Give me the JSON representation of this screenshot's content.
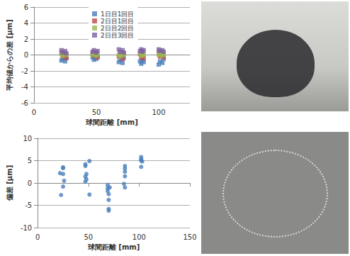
{
  "chart_data": [
    {
      "type": "scatter",
      "x_label": "球間距離 [mm]",
      "y_label": "平均値からの差 [μm]",
      "xlim": [
        0,
        125
      ],
      "xticks": [
        0,
        50,
        100
      ],
      "ylim": [
        -6,
        6
      ],
      "yticks": [
        -6,
        -4,
        -2,
        0,
        2,
        4,
        6
      ],
      "grid": true,
      "legend": "top",
      "marker": "square",
      "series": [
        {
          "name": "1日目1回目",
          "color": "#4a7ebb",
          "x": [
            22,
            23,
            25,
            26,
            47,
            48,
            50,
            51,
            68,
            69,
            71,
            72,
            85,
            86,
            87,
            88,
            100,
            101,
            103,
            104
          ],
          "values": [
            -0.7,
            -0.5,
            -0.8,
            -0.4,
            -0.3,
            -0.6,
            -0.5,
            -0.2,
            -0.9,
            -0.6,
            -1.0,
            -0.4,
            -0.8,
            -1.1,
            -0.6,
            -0.9,
            -1.2,
            -0.8,
            -1.0,
            -0.5
          ]
        },
        {
          "name": "2日目1回目",
          "color": "#be4b48",
          "x": [
            22,
            23,
            25,
            26,
            47,
            48,
            50,
            51,
            68,
            69,
            71,
            72,
            85,
            86,
            87,
            88,
            100,
            101,
            103,
            104
          ],
          "values": [
            0.3,
            -0.2,
            0.1,
            -0.4,
            0.2,
            -0.1,
            0.3,
            -0.3,
            -0.2,
            0.1,
            -0.5,
            0.2,
            0.1,
            -0.3,
            0.2,
            -0.4,
            0.3,
            -0.2,
            0.1,
            -0.3
          ]
        },
        {
          "name": "2日目2回目",
          "color": "#98b954",
          "x": [
            22,
            23,
            25,
            26,
            47,
            48,
            50,
            51,
            68,
            69,
            71,
            72,
            85,
            86,
            87,
            88,
            100,
            101,
            103,
            104
          ],
          "values": [
            0.1,
            -0.1,
            0.2,
            0.0,
            0.0,
            0.2,
            -0.1,
            0.1,
            0.0,
            -0.2,
            0.1,
            0.0,
            0.2,
            0.0,
            -0.1,
            0.1,
            0.0,
            0.2,
            -0.1,
            0.1
          ]
        },
        {
          "name": "2日目3回目",
          "color": "#7d60a0",
          "x": [
            22,
            23,
            25,
            26,
            47,
            48,
            50,
            51,
            68,
            69,
            71,
            72,
            85,
            86,
            87,
            88,
            100,
            101,
            103,
            104
          ],
          "values": [
            0.6,
            0.3,
            0.5,
            0.2,
            0.4,
            0.6,
            0.3,
            0.5,
            0.7,
            0.4,
            0.6,
            0.3,
            0.5,
            0.7,
            0.4,
            0.6,
            0.7,
            0.5,
            0.6,
            0.4
          ]
        }
      ]
    },
    {
      "type": "scatter",
      "x_label": "球間距離 [mm]",
      "y_label": "偏差 [μm]",
      "xlim": [
        0,
        150
      ],
      "xticks": [
        0,
        50,
        100,
        150
      ],
      "ylim": [
        -10,
        10
      ],
      "yticks": [
        -10,
        -5,
        0,
        5,
        10
      ],
      "grid": true,
      "marker": "circle",
      "series": [
        {
          "name": "偏差",
          "color": "#4a7ebb",
          "x": [
            22,
            23,
            25,
            25,
            25,
            26,
            25,
            47,
            47,
            48,
            47,
            48,
            47,
            51,
            51,
            69,
            69,
            69,
            70,
            70,
            70,
            70,
            71,
            86,
            86,
            86,
            86,
            85,
            86,
            102,
            102,
            102,
            103,
            102
          ],
          "values": [
            2.2,
            -2.7,
            3.5,
            3.3,
            2.0,
            0.5,
            -0.8,
            4.2,
            3.8,
            2.0,
            1.4,
            0.8,
            0.3,
            4.9,
            -2.6,
            -0.5,
            -1.2,
            -1.8,
            -2.5,
            -3.8,
            -5.8,
            -6.2,
            -1.0,
            3.8,
            3.2,
            2.5,
            1.5,
            -0.2,
            -1.0,
            5.8,
            5.3,
            5.0,
            4.8,
            3.6
          ]
        }
      ]
    }
  ]
}
